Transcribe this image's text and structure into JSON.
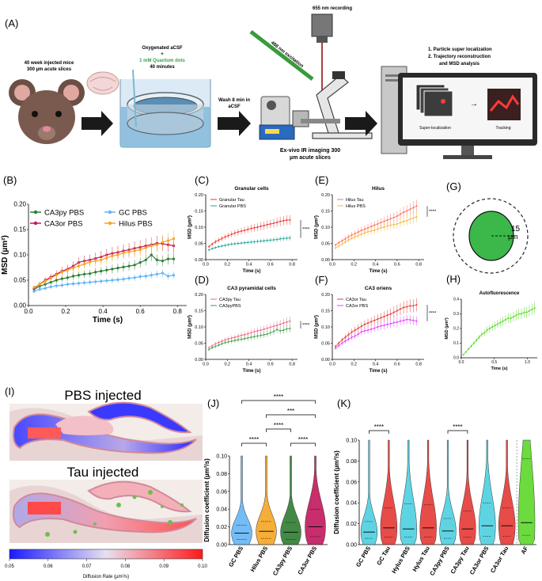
{
  "panels": {
    "A": "(A)",
    "B": "(B)",
    "C": "(C)",
    "D": "(D)",
    "E": "(E)",
    "F": "(F)",
    "G": "(G)",
    "H": "(H)",
    "I": "(I)",
    "J": "(J)",
    "K": "(K)"
  },
  "panel_a": {
    "mice_line1": "40 week injected mice",
    "mice_line2": "300 µm acute slices",
    "acsf_line1": "Oxygenated aCSF",
    "acsf_plus": "+",
    "qd_line": "1 mM Quantum dots",
    "minutes": "40 minutes",
    "wash_line1": "Wash 8 min in",
    "wash_line2": "aCSF",
    "recording": "655 nm recording",
    "excitation": "488 nm excitation",
    "imaging_line1": "Ex-vivo IR imaging 300",
    "imaging_line2": "µm acute slices",
    "analysis_1": "1.  Particle super localization",
    "analysis_2": "2.  Trajectory reconstruction",
    "analysis_3": "and MSD analysis",
    "superloc": "Super-localization",
    "tracking": "Tracking",
    "arrow": "→"
  },
  "colors": {
    "ca3py": "#2e7d32",
    "gc": "#64b5f6",
    "ca3or": "#c2185b",
    "hilus": "#f5a623",
    "gcTau": "#e53935",
    "gcPbs": "#26a69a",
    "hilusTau": "#ff6f61",
    "hilusPbs": "#f5b942",
    "ca3pyTau": "#ef6a8a",
    "ca3pyPbs": "#43a047",
    "ca3orTau": "#e53935",
    "ca3orPbs": "#e040fb",
    "af": "#5bd82a"
  },
  "chart_data": [
    {
      "id": "B",
      "type": "line",
      "xlabel": "Time (s)",
      "ylabel": "MSD (µm²)",
      "xlim": [
        0,
        0.85
      ],
      "ylim": [
        0,
        0.2
      ],
      "xticks": [
        "0.0",
        "0.2",
        "0.4",
        "0.6",
        "0.8"
      ],
      "yticks": [
        "0.00",
        "0.05",
        "0.10",
        "0.15",
        "0.20"
      ],
      "x": [
        0.03,
        0.06,
        0.09,
        0.12,
        0.15,
        0.18,
        0.21,
        0.24,
        0.27,
        0.3,
        0.33,
        0.36,
        0.39,
        0.42,
        0.45,
        0.48,
        0.51,
        0.54,
        0.57,
        0.6,
        0.63,
        0.66,
        0.69,
        0.72,
        0.75,
        0.78
      ],
      "series": [
        {
          "name": "CA3py PBS",
          "color": "ca3py",
          "values": [
            0.032,
            0.038,
            0.042,
            0.046,
            0.05,
            0.053,
            0.055,
            0.058,
            0.06,
            0.062,
            0.063,
            0.066,
            0.068,
            0.07,
            0.072,
            0.074,
            0.076,
            0.078,
            0.08,
            0.085,
            0.09,
            0.1,
            0.09,
            0.088,
            0.092,
            0.092
          ]
        },
        {
          "name": "CA3or PBS",
          "color": "ca3or",
          "values": [
            0.034,
            0.042,
            0.05,
            0.056,
            0.062,
            0.068,
            0.072,
            0.078,
            0.085,
            0.088,
            0.09,
            0.093,
            0.096,
            0.1,
            0.103,
            0.105,
            0.108,
            0.11,
            0.113,
            0.115,
            0.118,
            0.12,
            0.123,
            0.122,
            0.12,
            0.118
          ]
        },
        {
          "name": "GC PBS",
          "color": "gc",
          "values": [
            0.028,
            0.032,
            0.034,
            0.037,
            0.039,
            0.04,
            0.042,
            0.043,
            0.044,
            0.045,
            0.046,
            0.047,
            0.048,
            0.049,
            0.05,
            0.051,
            0.052,
            0.054,
            0.055,
            0.057,
            0.058,
            0.06,
            0.062,
            0.064,
            0.058,
            0.06
          ]
        },
        {
          "name": "Hilus PBS",
          "color": "hilus",
          "values": [
            0.036,
            0.042,
            0.048,
            0.054,
            0.06,
            0.066,
            0.07,
            0.074,
            0.078,
            0.082,
            0.086,
            0.088,
            0.09,
            0.094,
            0.098,
            0.1,
            0.104,
            0.106,
            0.108,
            0.11,
            0.114,
            0.118,
            0.12,
            0.125,
            0.128,
            0.132
          ]
        }
      ],
      "legend": [
        "CA3py PBS",
        "GC PBS",
        "CA3or PBS",
        "Hilus PBS"
      ]
    },
    {
      "id": "C",
      "type": "line",
      "title": "Granular cells",
      "xlabel": "Time (s)",
      "ylabel": "MSD (µm²)",
      "xlim": [
        0,
        0.85
      ],
      "ylim": [
        0,
        0.2
      ],
      "xticks": [
        "0.0",
        "0.2",
        "0.4",
        "0.6",
        "0.8"
      ],
      "yticks": [
        "0.00",
        "0.05",
        "0.10",
        "0.15",
        "0.20"
      ],
      "x": [
        0.03,
        0.06,
        0.09,
        0.12,
        0.15,
        0.18,
        0.21,
        0.24,
        0.27,
        0.3,
        0.33,
        0.36,
        0.39,
        0.42,
        0.45,
        0.48,
        0.51,
        0.54,
        0.57,
        0.6,
        0.63,
        0.66,
        0.69,
        0.72,
        0.75,
        0.78
      ],
      "series": [
        {
          "name": "Granular Tau",
          "color": "gcTau",
          "values": [
            0.04,
            0.048,
            0.055,
            0.06,
            0.065,
            0.07,
            0.074,
            0.078,
            0.082,
            0.085,
            0.088,
            0.09,
            0.093,
            0.096,
            0.098,
            0.1,
            0.103,
            0.105,
            0.108,
            0.11,
            0.112,
            0.115,
            0.118,
            0.12,
            0.122,
            0.122
          ]
        },
        {
          "name": "Granular PBS",
          "color": "gcPbs",
          "values": [
            0.03,
            0.034,
            0.037,
            0.04,
            0.042,
            0.044,
            0.046,
            0.048,
            0.049,
            0.05,
            0.051,
            0.052,
            0.053,
            0.054,
            0.055,
            0.056,
            0.057,
            0.058,
            0.059,
            0.06,
            0.061,
            0.062,
            0.064,
            0.065,
            0.066,
            0.067
          ]
        }
      ],
      "significance": "****"
    },
    {
      "id": "D",
      "type": "line",
      "title": "CA3 pyramidal cells",
      "xlabel": "Time (s)",
      "ylabel": "MSD (µm²)",
      "xlim": [
        0,
        0.85
      ],
      "ylim": [
        0,
        0.2
      ],
      "xticks": [
        "0.0",
        "0.2",
        "0.4",
        "0.6",
        "0.8"
      ],
      "yticks": [
        "0.00",
        "0.05",
        "0.10",
        "0.15",
        "0.20"
      ],
      "x": [
        0.03,
        0.06,
        0.09,
        0.12,
        0.15,
        0.18,
        0.21,
        0.24,
        0.27,
        0.3,
        0.33,
        0.36,
        0.39,
        0.42,
        0.45,
        0.48,
        0.51,
        0.54,
        0.57,
        0.6,
        0.63,
        0.66,
        0.69,
        0.72,
        0.75,
        0.78
      ],
      "series": [
        {
          "name": "CA3py Tau",
          "color": "ca3pyTau",
          "values": [
            0.036,
            0.042,
            0.048,
            0.052,
            0.056,
            0.06,
            0.063,
            0.066,
            0.068,
            0.071,
            0.074,
            0.076,
            0.079,
            0.082,
            0.085,
            0.088,
            0.09,
            0.093,
            0.096,
            0.099,
            0.102,
            0.105,
            0.108,
            0.112,
            0.115,
            0.118
          ]
        },
        {
          "name": "CA3pyPBS",
          "color": "ca3pyPbs",
          "values": [
            0.03,
            0.036,
            0.04,
            0.044,
            0.048,
            0.052,
            0.054,
            0.056,
            0.058,
            0.06,
            0.062,
            0.064,
            0.066,
            0.068,
            0.07,
            0.072,
            0.074,
            0.076,
            0.078,
            0.082,
            0.086,
            0.092,
            0.088,
            0.09,
            0.094,
            0.095
          ]
        }
      ],
      "significance": "****"
    },
    {
      "id": "E",
      "type": "line",
      "title": "Hilus",
      "xlabel": "Time (s)",
      "ylabel": "MSD (µm²)",
      "xlim": [
        0,
        0.85
      ],
      "ylim": [
        0,
        0.2
      ],
      "xticks": [
        "0.0",
        "0.2",
        "0.4",
        "0.6",
        "0.8"
      ],
      "yticks": [
        "0.00",
        "0.05",
        "0.10",
        "0.15",
        "0.20"
      ],
      "x": [
        0.03,
        0.06,
        0.09,
        0.12,
        0.15,
        0.18,
        0.21,
        0.24,
        0.27,
        0.3,
        0.33,
        0.36,
        0.39,
        0.42,
        0.45,
        0.48,
        0.51,
        0.54,
        0.57,
        0.6,
        0.63,
        0.66,
        0.69,
        0.72,
        0.75,
        0.78
      ],
      "series": [
        {
          "name": "Hilus Tau",
          "color": "hilusTau",
          "values": [
            0.045,
            0.052,
            0.058,
            0.064,
            0.07,
            0.076,
            0.08,
            0.085,
            0.09,
            0.094,
            0.098,
            0.102,
            0.106,
            0.11,
            0.114,
            0.118,
            0.122,
            0.126,
            0.13,
            0.134,
            0.14,
            0.146,
            0.15,
            0.155,
            0.16,
            0.165
          ]
        },
        {
          "name": "Hilus PBS",
          "color": "hilusPbs",
          "values": [
            0.036,
            0.042,
            0.048,
            0.054,
            0.06,
            0.066,
            0.07,
            0.074,
            0.078,
            0.082,
            0.086,
            0.088,
            0.09,
            0.094,
            0.098,
            0.1,
            0.104,
            0.106,
            0.108,
            0.11,
            0.114,
            0.118,
            0.12,
            0.125,
            0.128,
            0.132
          ]
        }
      ],
      "significance": "****"
    },
    {
      "id": "F",
      "type": "line",
      "title": "CA3 oriens",
      "xlabel": "Time (s)",
      "ylabel": "MSD (µm²)",
      "xlim": [
        0,
        0.85
      ],
      "ylim": [
        0,
        0.2
      ],
      "xticks": [
        "0.0",
        "0.2",
        "0.4",
        "0.6",
        "0.8"
      ],
      "yticks": [
        "0.00",
        "0.05",
        "0.10",
        "0.15",
        "0.20"
      ],
      "x": [
        0.03,
        0.06,
        0.09,
        0.12,
        0.15,
        0.18,
        0.21,
        0.24,
        0.27,
        0.3,
        0.33,
        0.36,
        0.39,
        0.42,
        0.45,
        0.48,
        0.51,
        0.54,
        0.57,
        0.6,
        0.63,
        0.66,
        0.69,
        0.72,
        0.75,
        0.78
      ],
      "series": [
        {
          "name": "CA3or Tau",
          "color": "ca3orTau",
          "values": [
            0.04,
            0.05,
            0.06,
            0.068,
            0.076,
            0.084,
            0.09,
            0.096,
            0.102,
            0.108,
            0.112,
            0.116,
            0.12,
            0.124,
            0.128,
            0.132,
            0.136,
            0.14,
            0.145,
            0.15,
            0.155,
            0.16,
            0.162,
            0.165,
            0.165,
            0.168
          ]
        },
        {
          "name": "CA3or PBS",
          "color": "ca3orPbs",
          "values": [
            0.034,
            0.042,
            0.05,
            0.056,
            0.062,
            0.068,
            0.072,
            0.078,
            0.085,
            0.088,
            0.09,
            0.093,
            0.096,
            0.1,
            0.103,
            0.105,
            0.108,
            0.11,
            0.113,
            0.115,
            0.118,
            0.12,
            0.123,
            0.122,
            0.12,
            0.118
          ]
        }
      ],
      "significance": "****"
    },
    {
      "id": "H",
      "type": "line",
      "title": "Autofluorescence",
      "xlabel": "Time (s)",
      "ylabel": "MSD (µm²)",
      "xlim": [
        0,
        1.15
      ],
      "ylim": [
        0,
        0.4
      ],
      "xticks": [
        "0.0",
        "0.5",
        "1.0"
      ],
      "yticks": [
        "0.0",
        "0.1",
        "0.2",
        "0.3",
        "0.4"
      ],
      "x": [
        0.03,
        0.07,
        0.11,
        0.15,
        0.19,
        0.23,
        0.27,
        0.31,
        0.35,
        0.39,
        0.43,
        0.47,
        0.51,
        0.55,
        0.59,
        0.63,
        0.67,
        0.71,
        0.75,
        0.79,
        0.83,
        0.87,
        0.91,
        0.95,
        0.99,
        1.03,
        1.07,
        1.11
      ],
      "series": [
        {
          "name": "AF",
          "color": "af",
          "values": [
            0.02,
            0.04,
            0.06,
            0.08,
            0.1,
            0.12,
            0.14,
            0.16,
            0.17,
            0.19,
            0.2,
            0.21,
            0.22,
            0.23,
            0.24,
            0.25,
            0.26,
            0.27,
            0.27,
            0.28,
            0.29,
            0.3,
            0.3,
            0.31,
            0.31,
            0.32,
            0.33,
            0.34
          ]
        }
      ]
    },
    {
      "id": "J",
      "type": "violin",
      "ylabel": "Diffusion coefficient (µm²/s)",
      "ylim": [
        0,
        0.1
      ],
      "yticks": [
        "0.00",
        "0.02",
        "0.04",
        "0.06",
        "0.08",
        "0.10"
      ],
      "categories": [
        "GC PBS",
        "Hilus PBS",
        "CA3py PBS",
        "CA3or PBS"
      ],
      "colors": [
        "gc",
        "hilus",
        "ca3py",
        "ca3or"
      ],
      "median": [
        0.013,
        0.015,
        0.014,
        0.02
      ],
      "q1": [
        0.006,
        0.007,
        0.006,
        0.009
      ],
      "q3": [
        0.022,
        0.026,
        0.025,
        0.04
      ],
      "significance": [
        {
          "from": 0,
          "to": 1,
          "label": "****"
        },
        {
          "from": 2,
          "to": 3,
          "label": "****"
        },
        {
          "from": 1,
          "to": 2,
          "label": "****"
        },
        {
          "from": 1,
          "to": 3,
          "label": "***"
        },
        {
          "from": 0,
          "to": 3,
          "label": "****"
        }
      ]
    },
    {
      "id": "K",
      "type": "violin",
      "ylabel": "Diffusion coefficient (µm²/s)",
      "ylim": [
        0,
        0.1
      ],
      "yticks": [
        "0.00",
        "0.02",
        "0.04",
        "0.06",
        "0.08",
        "0.10"
      ],
      "categories": [
        "GC PBS",
        "GC Tau",
        "Hylus PBS",
        "Hylus Tau",
        "CA3py PBS",
        "CA3py Tau",
        "CA3or PBS",
        "CA3or Tau",
        "AF"
      ],
      "colors": [
        "#4dd0e1",
        "#e53935",
        "#4dd0e1",
        "#e53935",
        "#4dd0e1",
        "#e53935",
        "#4dd0e1",
        "#e53935",
        "#5bd82a"
      ],
      "median": [
        0.012,
        0.016,
        0.015,
        0.016,
        0.013,
        0.015,
        0.018,
        0.018,
        0.021
      ],
      "q1": [
        0.006,
        0.007,
        0.007,
        0.007,
        0.006,
        0.007,
        0.008,
        0.008,
        0.009
      ],
      "q3": [
        0.022,
        0.035,
        0.039,
        0.038,
        0.025,
        0.032,
        0.04,
        0.035,
        0.082
      ],
      "significance": [
        {
          "from": 0,
          "to": 1,
          "label": "****"
        },
        {
          "from": 4,
          "to": 5,
          "label": "****"
        }
      ]
    }
  ],
  "panel_g": {
    "label": "15",
    "unit": "µm"
  },
  "panel_i": {
    "title_pbs": "PBS injected",
    "title_tau": "Tau injected",
    "colorbar_ticks": [
      "0.05",
      "0.06",
      "0.07",
      "0.08",
      "0.09",
      "0.10"
    ],
    "colorbar_label": "Diffusion Rate (µm²/s)"
  }
}
